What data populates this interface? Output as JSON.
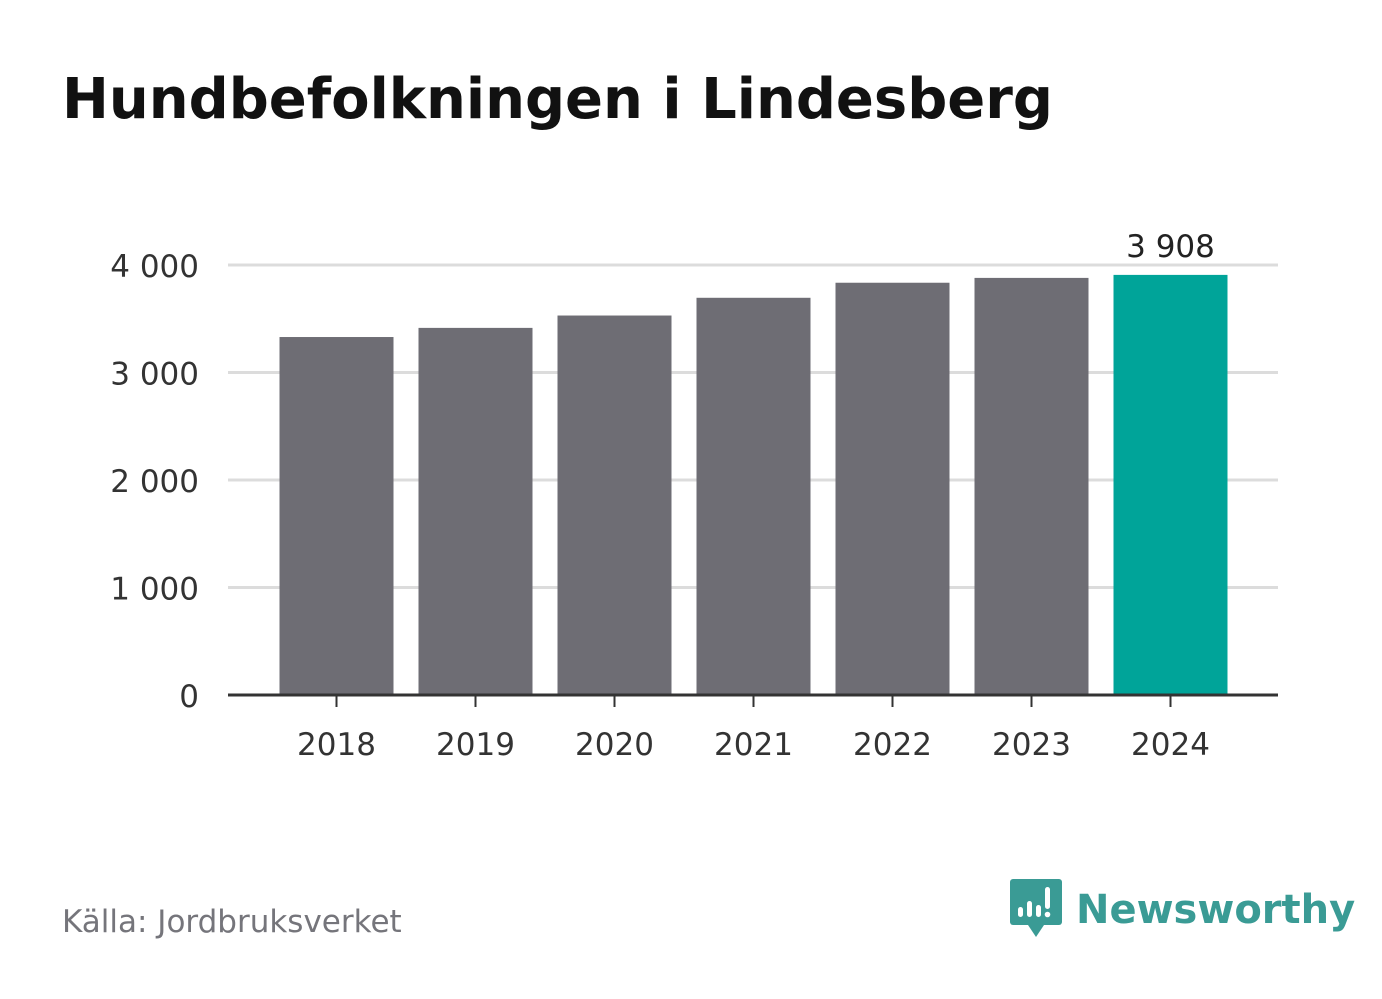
{
  "title": "Hundbefolkningen i Lindesberg",
  "source": "Källa: Jordbruksverket",
  "brand": {
    "name": "Newsworthy",
    "icon": "newsworthy-logo-icon",
    "color": "#3a9b95"
  },
  "colors": {
    "bar": "#6e6d74",
    "highlight": "#00a499",
    "grid": "#dcdcdc",
    "axis": "#333333",
    "text": "#333333"
  },
  "chart_data": {
    "type": "bar",
    "categories": [
      "2018",
      "2019",
      "2020",
      "2021",
      "2022",
      "2023",
      "2024"
    ],
    "values": [
      3330,
      3415,
      3530,
      3695,
      3835,
      3880,
      3908
    ],
    "highlight_index": 6,
    "data_labels": [
      {
        "index": 6,
        "text": "3 908"
      }
    ],
    "y_ticks": [
      {
        "value": 0,
        "label": "0"
      },
      {
        "value": 1000,
        "label": "1 000"
      },
      {
        "value": 2000,
        "label": "2 000"
      },
      {
        "value": 3000,
        "label": "3 000"
      },
      {
        "value": 4000,
        "label": "4 000"
      }
    ],
    "ylim": [
      0,
      4000
    ],
    "grid": true,
    "legend": "none",
    "xlabel": "",
    "ylabel": ""
  }
}
